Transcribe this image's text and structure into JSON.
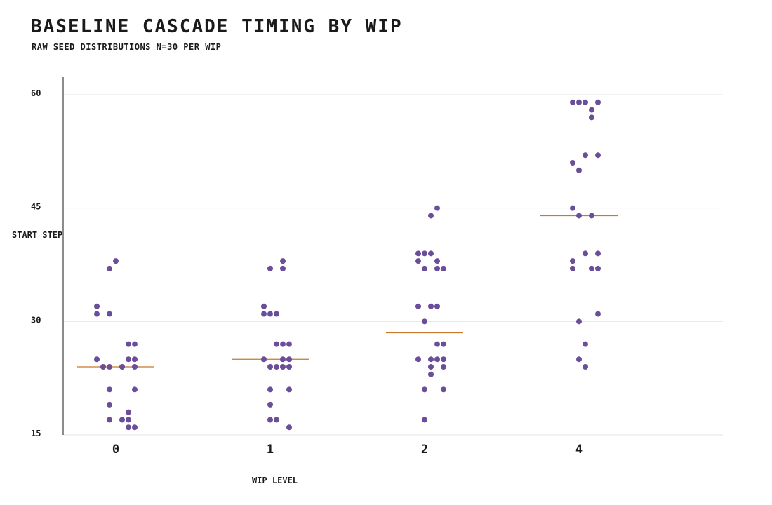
{
  "header": {
    "title": "Baseline cascade timing by WIP",
    "subtitle": "raw seed distributions  n=30 per WIP"
  },
  "colors": {
    "point": "#6b4e9a",
    "median": "#c8782a",
    "grid": "#e6e6e6",
    "axis": "#1a1a1a"
  },
  "chart_data": {
    "type": "scatter",
    "title": "Baseline cascade timing by WIP",
    "subtitle": "raw seed distributions  n=30 per WIP",
    "xlabel": "WIP LEVEL",
    "ylabel": "START STEP",
    "categories": [
      "0",
      "1",
      "2",
      "4"
    ],
    "ylim": [
      15,
      60
    ],
    "yticks": [
      15,
      30,
      45,
      60
    ],
    "grid": true,
    "medians": [
      24,
      25,
      28.5,
      44
    ],
    "series": [
      {
        "category": "0",
        "points": [
          {
            "dx": 0,
            "y": 38
          },
          {
            "dx": -1,
            "y": 37
          },
          {
            "dx": -3,
            "y": 32
          },
          {
            "dx": -3,
            "y": 31
          },
          {
            "dx": -1,
            "y": 31
          },
          {
            "dx": 2,
            "y": 27
          },
          {
            "dx": 3,
            "y": 27
          },
          {
            "dx": -3,
            "y": 25
          },
          {
            "dx": 2,
            "y": 25
          },
          {
            "dx": 3,
            "y": 25
          },
          {
            "dx": -2,
            "y": 24
          },
          {
            "dx": -1,
            "y": 24
          },
          {
            "dx": 1,
            "y": 24
          },
          {
            "dx": 3,
            "y": 24
          },
          {
            "dx": -1,
            "y": 21
          },
          {
            "dx": 3,
            "y": 21
          },
          {
            "dx": -1,
            "y": 19
          },
          {
            "dx": 2,
            "y": 18
          },
          {
            "dx": -1,
            "y": 17
          },
          {
            "dx": 1,
            "y": 17
          },
          {
            "dx": 2,
            "y": 17
          },
          {
            "dx": 2,
            "y": 16
          },
          {
            "dx": 3,
            "y": 16
          }
        ]
      },
      {
        "category": "1",
        "points": [
          {
            "dx": 2,
            "y": 38
          },
          {
            "dx": 0,
            "y": 37
          },
          {
            "dx": 2,
            "y": 37
          },
          {
            "dx": -1,
            "y": 32
          },
          {
            "dx": -1,
            "y": 31
          },
          {
            "dx": 0,
            "y": 31
          },
          {
            "dx": 1,
            "y": 31
          },
          {
            "dx": 1,
            "y": 27
          },
          {
            "dx": 2,
            "y": 27
          },
          {
            "dx": 3,
            "y": 27
          },
          {
            "dx": -1,
            "y": 25
          },
          {
            "dx": 2,
            "y": 25
          },
          {
            "dx": 3,
            "y": 25
          },
          {
            "dx": 0,
            "y": 24
          },
          {
            "dx": 1,
            "y": 24
          },
          {
            "dx": 2,
            "y": 24
          },
          {
            "dx": 3,
            "y": 24
          },
          {
            "dx": 0,
            "y": 21
          },
          {
            "dx": 3,
            "y": 21
          },
          {
            "dx": 0,
            "y": 19
          },
          {
            "dx": 0,
            "y": 17
          },
          {
            "dx": 1,
            "y": 17
          },
          {
            "dx": 3,
            "y": 16
          }
        ]
      },
      {
        "category": "2",
        "points": [
          {
            "dx": 2,
            "y": 45
          },
          {
            "dx": 1,
            "y": 44
          },
          {
            "dx": -1,
            "y": 39
          },
          {
            "dx": 0,
            "y": 39
          },
          {
            "dx": 1,
            "y": 39
          },
          {
            "dx": -1,
            "y": 38
          },
          {
            "dx": 2,
            "y": 38
          },
          {
            "dx": 0,
            "y": 37
          },
          {
            "dx": 2,
            "y": 37
          },
          {
            "dx": 3,
            "y": 37
          },
          {
            "dx": -1,
            "y": 32
          },
          {
            "dx": 1,
            "y": 32
          },
          {
            "dx": 2,
            "y": 32
          },
          {
            "dx": 0,
            "y": 30
          },
          {
            "dx": 2,
            "y": 27
          },
          {
            "dx": 3,
            "y": 27
          },
          {
            "dx": -1,
            "y": 25
          },
          {
            "dx": 1,
            "y": 25
          },
          {
            "dx": 2,
            "y": 25
          },
          {
            "dx": 3,
            "y": 25
          },
          {
            "dx": 1,
            "y": 24
          },
          {
            "dx": 3,
            "y": 24
          },
          {
            "dx": 1,
            "y": 23
          },
          {
            "dx": 0,
            "y": 21
          },
          {
            "dx": 3,
            "y": 21
          },
          {
            "dx": 0,
            "y": 17
          }
        ]
      },
      {
        "category": "4",
        "points": [
          {
            "dx": -1,
            "y": 59
          },
          {
            "dx": 0,
            "y": 59
          },
          {
            "dx": 1,
            "y": 59
          },
          {
            "dx": 3,
            "y": 59
          },
          {
            "dx": 2,
            "y": 58
          },
          {
            "dx": 2,
            "y": 57
          },
          {
            "dx": 1,
            "y": 52
          },
          {
            "dx": 3,
            "y": 52
          },
          {
            "dx": -1,
            "y": 51
          },
          {
            "dx": 0,
            "y": 50
          },
          {
            "dx": -1,
            "y": 45
          },
          {
            "dx": 0,
            "y": 44
          },
          {
            "dx": 2,
            "y": 44
          },
          {
            "dx": 1,
            "y": 39
          },
          {
            "dx": 3,
            "y": 39
          },
          {
            "dx": -1,
            "y": 38
          },
          {
            "dx": -1,
            "y": 37
          },
          {
            "dx": 2,
            "y": 37
          },
          {
            "dx": 3,
            "y": 37
          },
          {
            "dx": 3,
            "y": 31
          },
          {
            "dx": 0,
            "y": 30
          },
          {
            "dx": 1,
            "y": 27
          },
          {
            "dx": 0,
            "y": 25
          },
          {
            "dx": 1,
            "y": 24
          }
        ]
      }
    ]
  }
}
